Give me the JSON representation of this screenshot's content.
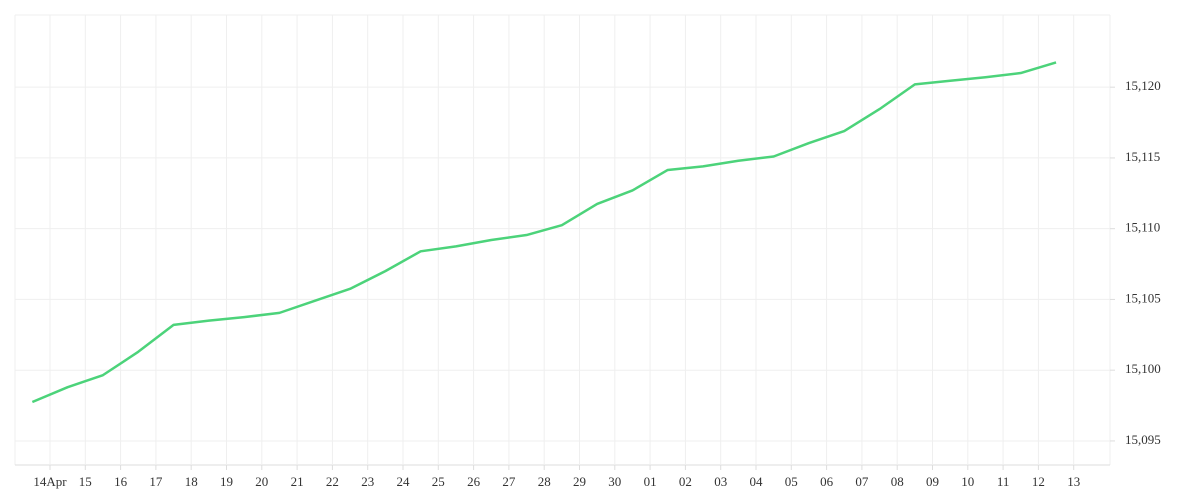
{
  "chart_data": {
    "type": "line",
    "categories": [
      "14Apr",
      "15",
      "16",
      "17",
      "18",
      "19",
      "20",
      "21",
      "22",
      "23",
      "24",
      "25",
      "26",
      "27",
      "28",
      "29",
      "30",
      "01",
      "02",
      "03",
      "04",
      "05",
      "06",
      "07",
      "08",
      "09",
      "10",
      "11",
      "12",
      "13"
    ],
    "series": [
      {
        "color": "#4cd37a",
        "values": [
          15097.75,
          15098.8,
          15099.65,
          15101.3,
          15103.2,
          15103.5,
          15103.75,
          15104.05,
          15104.9,
          15105.75,
          15107.0,
          15108.4,
          15108.75,
          15109.2,
          15109.55,
          15110.25,
          15111.75,
          15112.7,
          15114.15,
          15114.4,
          15114.8,
          15115.1,
          15116.05,
          15116.9,
          15118.45,
          15120.2,
          15120.45,
          15120.7,
          15121.0,
          15121.75
        ]
      }
    ],
    "ylim": [
      15093.3,
      15125.1
    ],
    "yticks": [
      {
        "value": 15095,
        "label": "15,095"
      },
      {
        "value": 15100,
        "label": "15,100"
      },
      {
        "value": 15105,
        "label": "15,105"
      },
      {
        "value": 15110,
        "label": "15,110"
      },
      {
        "value": 15115,
        "label": "15,115"
      },
      {
        "value": 15120,
        "label": "15,120"
      }
    ],
    "grid": true
  }
}
